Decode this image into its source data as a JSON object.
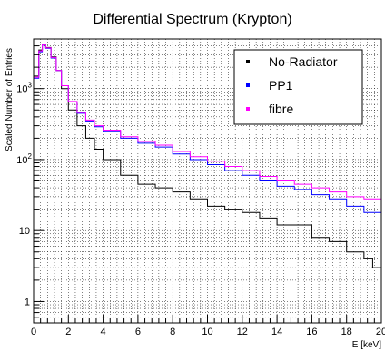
{
  "chart_data": {
    "type": "line",
    "title": "Differential Spectrum (Krypton)",
    "xlabel": "E [keV]",
    "ylabel": "Scaled Number of Entries",
    "xlim": [
      0,
      20
    ],
    "ylim": [
      0.5,
      5000
    ],
    "yscale": "log",
    "grid": true,
    "legend_position": "top-right",
    "x_ticks": [
      "0",
      "2",
      "4",
      "6",
      "8",
      "10",
      "12",
      "14",
      "16",
      "18",
      "20"
    ],
    "y_ticks": [
      {
        "value": 1,
        "label": "1"
      },
      {
        "value": 10,
        "label": "10"
      },
      {
        "value": 100,
        "label": "10",
        "exp": "2"
      },
      {
        "value": 1000,
        "label": "10",
        "exp": "3"
      }
    ],
    "series": [
      {
        "name": "No-Radiator",
        "color": "#000000",
        "x": [
          0.1,
          0.3,
          0.5,
          0.7,
          1.0,
          1.3,
          1.6,
          2.0,
          2.5,
          3.0,
          3.5,
          4.0,
          5.0,
          6.0,
          7.0,
          8.0,
          9.0,
          10.0,
          11.0,
          12.0,
          13.0,
          14.0,
          15.0,
          16.0,
          17.0,
          18.0,
          19.0,
          19.5,
          20.0
        ],
        "y": [
          1500,
          3500,
          4200,
          3800,
          2800,
          1800,
          1000,
          500,
          300,
          200,
          140,
          100,
          60,
          45,
          40,
          35,
          28,
          22,
          20,
          18,
          15,
          12,
          12,
          8,
          7,
          5,
          4,
          3,
          1.5
        ]
      },
      {
        "name": "PP1",
        "color": "#0000ff",
        "x": [
          0.1,
          0.3,
          0.5,
          0.7,
          1.0,
          1.3,
          1.6,
          2.0,
          2.5,
          3.0,
          3.5,
          4.0,
          5.0,
          6.0,
          7.0,
          8.0,
          9.0,
          10.0,
          11.0,
          12.0,
          13.0,
          14.0,
          15.0,
          16.0,
          17.0,
          18.0,
          19.0,
          20.0
        ],
        "y": [
          1400,
          3300,
          4100,
          3700,
          2700,
          1800,
          1100,
          650,
          450,
          350,
          290,
          250,
          200,
          170,
          150,
          120,
          100,
          85,
          70,
          60,
          50,
          42,
          38,
          32,
          28,
          22,
          18,
          12
        ]
      },
      {
        "name": "fibre",
        "color": "#ff00ff",
        "x": [
          0.1,
          0.3,
          0.5,
          0.7,
          1.0,
          1.3,
          1.6,
          2.0,
          2.5,
          3.0,
          3.5,
          4.0,
          5.0,
          6.0,
          7.0,
          8.0,
          9.0,
          10.0,
          11.0,
          12.0,
          13.0,
          14.0,
          15.0,
          16.0,
          17.0,
          18.0,
          19.0,
          20.0
        ],
        "y": [
          1450,
          3400,
          4150,
          3750,
          2750,
          1800,
          1100,
          660,
          460,
          360,
          300,
          260,
          210,
          180,
          160,
          130,
          110,
          95,
          80,
          70,
          58,
          50,
          45,
          40,
          35,
          30,
          28,
          22
        ]
      }
    ]
  }
}
